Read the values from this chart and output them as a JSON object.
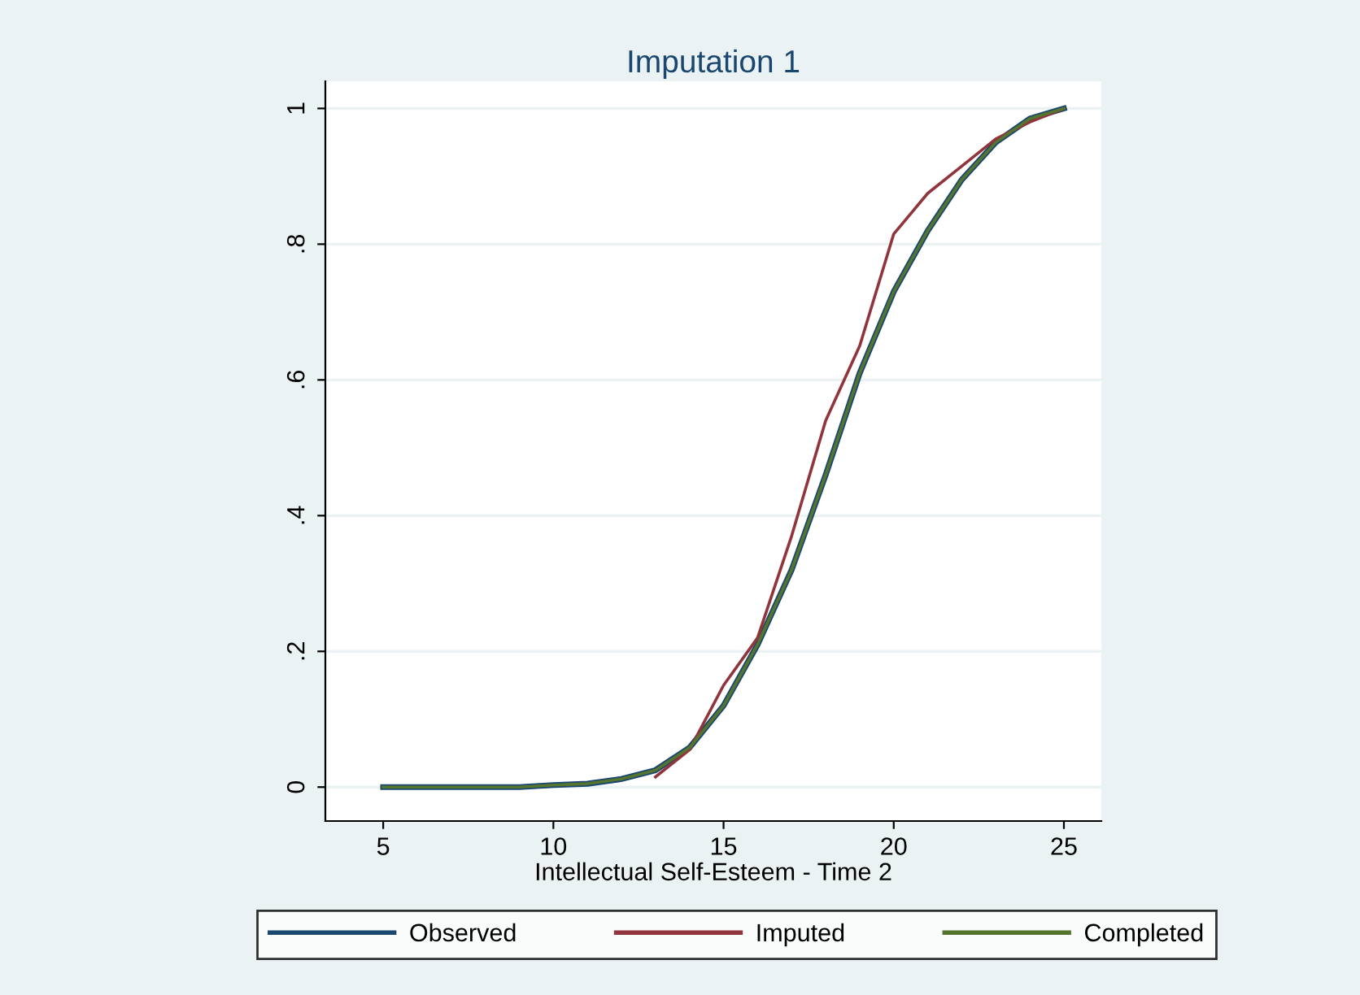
{
  "chart_data": {
    "type": "line",
    "title": "Imputation 1",
    "xlabel": "Intellectual Self-Esteem - Time 2",
    "xlim": [
      3.3,
      26.1
    ],
    "xticks": [
      5,
      10,
      15,
      20,
      25
    ],
    "ylim": [
      -0.05,
      1.04
    ],
    "yticks": [
      {
        "value": 0,
        "label": "0"
      },
      {
        "value": 0.2,
        "label": ".2"
      },
      {
        "value": 0.4,
        "label": ".4"
      },
      {
        "value": 0.6,
        "label": ".6"
      },
      {
        "value": 0.8,
        "label": ".8"
      },
      {
        "value": 1,
        "label": "1"
      }
    ],
    "grid": "y",
    "legend": "bottom",
    "line_style": "solid",
    "marker": "none",
    "series": [
      {
        "name": "Observed",
        "color": "#1a476f",
        "x": [
          5,
          6,
          7,
          8,
          9,
          10,
          11,
          12,
          13,
          14,
          15,
          16,
          17,
          18,
          19,
          20,
          21,
          22,
          23,
          24,
          25
        ],
        "values": [
          0,
          0,
          0,
          0,
          0,
          0.003,
          0.005,
          0.012,
          0.025,
          0.058,
          0.12,
          0.21,
          0.32,
          0.46,
          0.61,
          0.73,
          0.82,
          0.895,
          0.95,
          0.985,
          1
        ]
      },
      {
        "name": "Imputed",
        "color": "#90353b",
        "x": [
          13,
          14,
          15,
          16,
          17,
          18,
          19,
          20,
          21,
          22,
          23,
          24,
          25
        ],
        "values": [
          0.015,
          0.055,
          0.15,
          0.22,
          0.37,
          0.54,
          0.65,
          0.815,
          0.875,
          0.915,
          0.955,
          0.98,
          1
        ]
      },
      {
        "name": "Completed",
        "color": "#55752f",
        "x": [
          5,
          6,
          7,
          8,
          9,
          10,
          11,
          12,
          13,
          14,
          15,
          16,
          17,
          18,
          19,
          20,
          21,
          22,
          23,
          24,
          25
        ],
        "values": [
          0,
          0,
          0,
          0,
          0,
          0.003,
          0.005,
          0.012,
          0.025,
          0.058,
          0.12,
          0.21,
          0.32,
          0.46,
          0.61,
          0.73,
          0.82,
          0.895,
          0.95,
          0.985,
          1
        ]
      }
    ]
  }
}
